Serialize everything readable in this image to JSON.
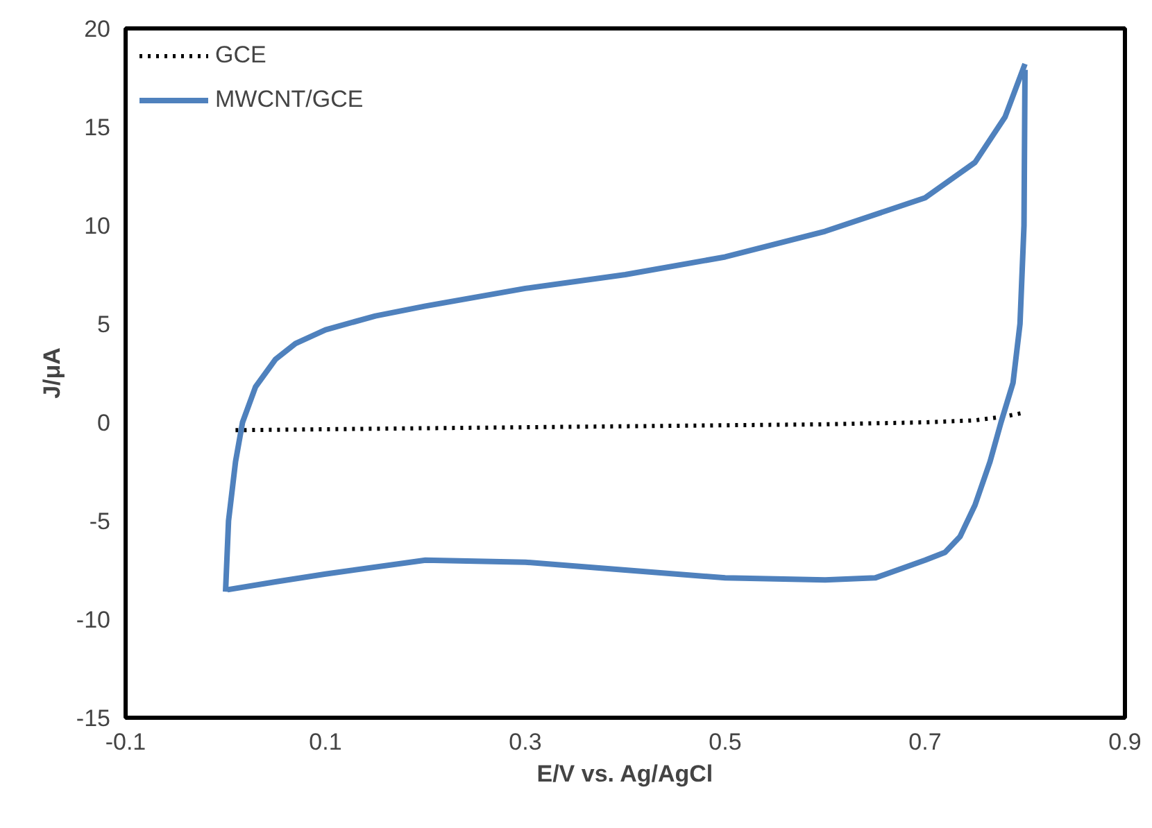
{
  "chart_data": {
    "type": "line",
    "xlabel": "E/V vs. Ag/AgCl",
    "ylabel": "J/μA",
    "xlim": [
      -0.1,
      0.9
    ],
    "xticks": [
      -0.1,
      0.1,
      0.3,
      0.5,
      0.7,
      0.9
    ],
    "ylim": [
      -15,
      20
    ],
    "yticks": [
      -15,
      -10,
      -5,
      0,
      5,
      10,
      15,
      20
    ],
    "grid": false,
    "legend": "top left",
    "series": [
      {
        "name": "GCE",
        "color": "#000000",
        "line_style": "dotted",
        "x": [
          0.01,
          0.1,
          0.2,
          0.3,
          0.4,
          0.5,
          0.6,
          0.7,
          0.75,
          0.78,
          0.8
        ],
        "values": [
          -0.4,
          -0.35,
          -0.3,
          -0.25,
          -0.2,
          -0.15,
          -0.1,
          0.0,
          0.1,
          0.3,
          0.5
        ]
      },
      {
        "name": "MWCNT/GCE",
        "color": "#4f81bd",
        "line_style": "solid",
        "x": [
          0.0,
          0.003,
          0.01,
          0.017,
          0.03,
          0.05,
          0.07,
          0.1,
          0.15,
          0.2,
          0.3,
          0.4,
          0.5,
          0.6,
          0.7,
          0.75,
          0.78,
          0.8
        ],
        "values": [
          -8.6,
          -5.0,
          -2.0,
          0.0,
          1.8,
          3.2,
          4.0,
          4.7,
          5.4,
          5.9,
          6.8,
          7.5,
          8.4,
          9.7,
          11.4,
          13.2,
          15.5,
          18.2
        ]
      },
      {
        "color": "#4f81bd",
        "line_style": "solid",
        "x": [
          0.8,
          0.799,
          0.795,
          0.788,
          0.776,
          0.765,
          0.75,
          0.735,
          0.72,
          0.7,
          0.65,
          0.6,
          0.5,
          0.4,
          0.3,
          0.2,
          0.1,
          0.05,
          0.002
        ],
        "values": [
          17.9,
          10.0,
          5.0,
          2.0,
          0.0,
          -2.0,
          -4.2,
          -5.8,
          -6.6,
          -7.0,
          -7.9,
          -8.0,
          -7.9,
          -7.5,
          -7.1,
          -7.0,
          -7.7,
          -8.1,
          -8.5
        ]
      }
    ]
  }
}
